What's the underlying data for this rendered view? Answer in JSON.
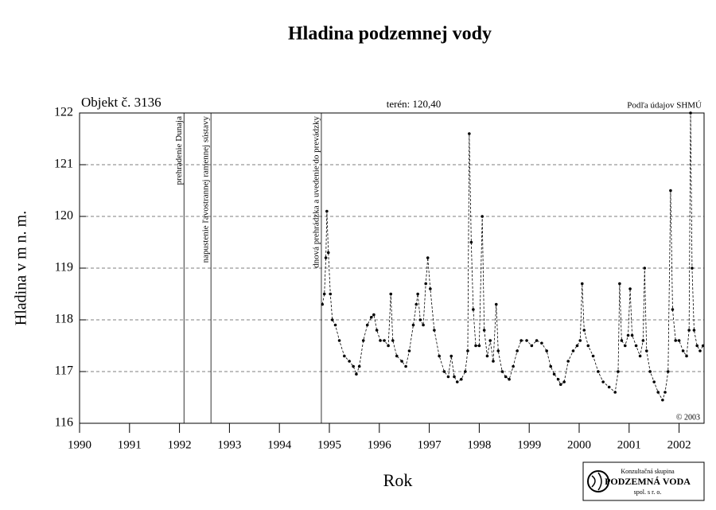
{
  "chart_data": {
    "type": "line",
    "title": "Hladina podzemnej vody",
    "y_label": "Hladina v m n. m.",
    "x_label": "Rok",
    "object_label": "Objekt č. 3136",
    "terrain_label": "terén: 120,40",
    "source_label": "Podľa údajov SHMÚ",
    "copyright": "© 2003",
    "logo": {
      "line1": "Konzultačná skupina",
      "line2": "PODZEMNÁ VODA",
      "line3": "spol. s r. o."
    },
    "xlim": [
      1990,
      2002.5
    ],
    "xticks": [
      1990,
      1991,
      1992,
      1993,
      1994,
      1995,
      1996,
      1997,
      1998,
      1999,
      2000,
      2001,
      2002
    ],
    "ylim": [
      116,
      122
    ],
    "yticks": [
      116,
      117,
      118,
      119,
      120,
      121,
      122
    ],
    "grid": true,
    "events": [
      {
        "x": 1992.09,
        "label": "prehradenie Dunaja"
      },
      {
        "x": 1992.63,
        "label": "napustenie ľavostrannej ramennej sústavy"
      },
      {
        "x": 1994.84,
        "label": "dnová prehrádzka a uvedenie do prevádzky"
      }
    ],
    "series": [
      {
        "color": "#000000",
        "x": [
          1994.86,
          1994.9,
          1994.93,
          1994.95,
          1994.98,
          1995.02,
          1995.06,
          1995.12,
          1995.2,
          1995.3,
          1995.4,
          1995.48,
          1995.54,
          1995.6,
          1995.68,
          1995.76,
          1995.84,
          1995.89,
          1995.95,
          1996.02,
          1996.1,
          1996.18,
          1996.23,
          1996.27,
          1996.35,
          1996.45,
          1996.53,
          1996.6,
          1996.68,
          1996.74,
          1996.77,
          1996.82,
          1996.88,
          1996.93,
          1996.97,
          1997.02,
          1997.1,
          1997.2,
          1997.3,
          1997.38,
          1997.44,
          1997.5,
          1997.56,
          1997.64,
          1997.72,
          1997.77,
          1997.8,
          1997.84,
          1997.88,
          1997.93,
          1998.0,
          1998.06,
          1998.1,
          1998.16,
          1998.22,
          1998.28,
          1998.34,
          1998.38,
          1998.46,
          1998.53,
          1998.6,
          1998.68,
          1998.76,
          1998.84,
          1998.95,
          1999.05,
          1999.15,
          1999.25,
          1999.35,
          1999.43,
          1999.5,
          1999.58,
          1999.63,
          1999.7,
          1999.78,
          1999.88,
          1999.96,
          2000.02,
          2000.06,
          2000.1,
          2000.18,
          2000.28,
          2000.38,
          2000.48,
          2000.6,
          2000.72,
          2000.78,
          2000.81,
          2000.85,
          2000.92,
          2000.98,
          2001.02,
          2001.06,
          2001.14,
          2001.22,
          2001.28,
          2001.31,
          2001.35,
          2001.42,
          2001.5,
          2001.58,
          2001.67,
          2001.72,
          2001.78,
          2001.83,
          2001.87,
          2001.93,
          2002.0,
          2002.08,
          2002.15,
          2002.2,
          2002.23,
          2002.26,
          2002.3,
          2002.36,
          2002.42,
          2002.48
        ],
        "values": [
          118.3,
          118.5,
          119.2,
          120.1,
          119.3,
          118.5,
          118.0,
          117.9,
          117.6,
          117.3,
          117.2,
          117.1,
          116.95,
          117.1,
          117.6,
          117.9,
          118.05,
          118.1,
          117.8,
          117.6,
          117.6,
          117.5,
          118.5,
          117.6,
          117.3,
          117.2,
          117.1,
          117.4,
          117.9,
          118.3,
          118.5,
          118.0,
          117.9,
          118.7,
          119.2,
          118.6,
          117.8,
          117.3,
          117.0,
          116.9,
          117.3,
          116.9,
          116.8,
          116.85,
          117.0,
          117.4,
          121.6,
          119.5,
          118.2,
          117.5,
          117.5,
          120.0,
          117.8,
          117.3,
          117.6,
          117.2,
          118.3,
          117.4,
          117.0,
          116.9,
          116.85,
          117.1,
          117.4,
          117.6,
          117.6,
          117.5,
          117.6,
          117.55,
          117.4,
          117.1,
          116.95,
          116.85,
          116.75,
          116.8,
          117.2,
          117.4,
          117.5,
          117.6,
          118.7,
          117.8,
          117.5,
          117.3,
          117.0,
          116.8,
          116.7,
          116.6,
          117.0,
          118.7,
          117.6,
          117.5,
          117.7,
          118.6,
          117.7,
          117.5,
          117.3,
          117.6,
          119.0,
          117.4,
          117.0,
          116.8,
          116.6,
          116.45,
          116.6,
          117.0,
          120.5,
          118.2,
          117.6,
          117.6,
          117.4,
          117.3,
          117.8,
          122.0,
          119.0,
          117.8,
          117.5,
          117.4,
          117.5
        ]
      }
    ]
  }
}
